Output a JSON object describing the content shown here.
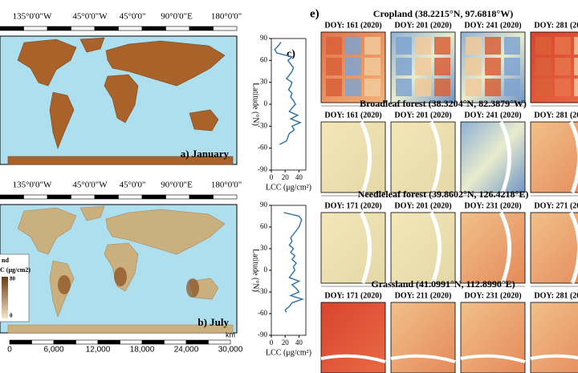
{
  "maps": [
    {
      "label": "a) January",
      "top_ticks": [
        "135°0'0\"W",
        "45°0'0\"W",
        "45°0'0\"",
        "90°0'0\"E",
        "180°0'0\""
      ]
    },
    {
      "label": "b) July",
      "top_ticks": [
        "135°0'0\"W",
        "45°0'0\"W",
        "45°0'0\"",
        "90°0'0\"E",
        "180°0'0\""
      ],
      "legend": {
        "title": "nd",
        "subtitle": "C (μg/cm2)",
        "max": "80",
        "min": "0"
      }
    }
  ],
  "scale_bar": {
    "unit": "km",
    "ticks": [
      "0",
      "6,000",
      "12,000",
      "18,000",
      "24,000",
      "30,000"
    ]
  },
  "profiles": [
    {
      "label": "c)",
      "x_label": "LCC (μg/cm²)",
      "y_label": "Latitude (°N)",
      "xlim": [
        0,
        50
      ],
      "xticks": [
        0,
        20,
        40
      ],
      "ylim": [
        -90,
        90
      ],
      "yticks": [
        90,
        60,
        30,
        0,
        -30,
        -60,
        -90
      ],
      "lat": [
        85,
        80,
        75,
        70,
        65,
        60,
        55,
        50,
        45,
        40,
        35,
        30,
        25,
        20,
        15,
        10,
        5,
        0,
        -5,
        -10,
        -15,
        -20,
        -25,
        -30,
        -35,
        -40,
        -45,
        -50,
        -55
      ],
      "lcc": [
        14,
        10,
        5,
        8,
        30,
        24,
        28,
        32,
        30,
        26,
        22,
        30,
        28,
        25,
        30,
        28,
        32,
        35,
        30,
        26,
        38,
        28,
        42,
        30,
        33,
        26,
        24,
        22,
        12
      ]
    },
    {
      "label": null,
      "x_label": "LCC (μg/cm²)",
      "y_label": "Latitude (°N)",
      "xlim": [
        0,
        50
      ],
      "xticks": [
        0,
        20,
        40
      ],
      "ylim": [
        -90,
        90
      ],
      "yticks": [
        90,
        60,
        30,
        0,
        -30,
        -60,
        -90
      ],
      "lat": [
        80,
        75,
        70,
        65,
        60,
        55,
        50,
        45,
        40,
        35,
        30,
        25,
        20,
        15,
        10,
        5,
        0,
        -5,
        -10,
        -15,
        -20,
        -25,
        -30,
        -35,
        -40,
        -45,
        -50,
        -55,
        -58
      ],
      "lcc": [
        18,
        40,
        44,
        42,
        40,
        36,
        32,
        28,
        30,
        26,
        32,
        28,
        34,
        30,
        36,
        32,
        34,
        30,
        26,
        40,
        30,
        36,
        40,
        28,
        45,
        30,
        26,
        20,
        22
      ]
    }
  ],
  "panel_e": {
    "label": "e)",
    "sections": [
      {
        "title": "Cropland (38.2215°N, 97.6818°W)",
        "dates": [
          "DOY: 161 (2020)",
          "DOY: 201 (2020)",
          "DOY: 241 (2020)",
          "DOY: 281 (2020)"
        ]
      },
      {
        "title": "Broadleaf forest (38.3204°N, 82.3879°W)",
        "dates": [
          "DOY: 161 (2020)",
          "DOY: 201 (2020)",
          "DOY: 241 (2020)",
          "DOY: 281 (2020)"
        ]
      },
      {
        "title": "Needleleaf forest (39.8602°N, 126.4218°E)",
        "dates": [
          "DOY: 171 (2020)",
          "DOY: 201 (2020)",
          "DOY: 231 (2020)",
          "DOY: 271 (2020)"
        ]
      },
      {
        "title": "Grassland (41.0991°N, 112.8990°E)",
        "dates": [
          "DOY: 171 (2020)",
          "DOY: 211 (2020)",
          "DOY: 231 (2020)",
          "DOY: 281 (2020)"
        ]
      }
    ]
  }
}
